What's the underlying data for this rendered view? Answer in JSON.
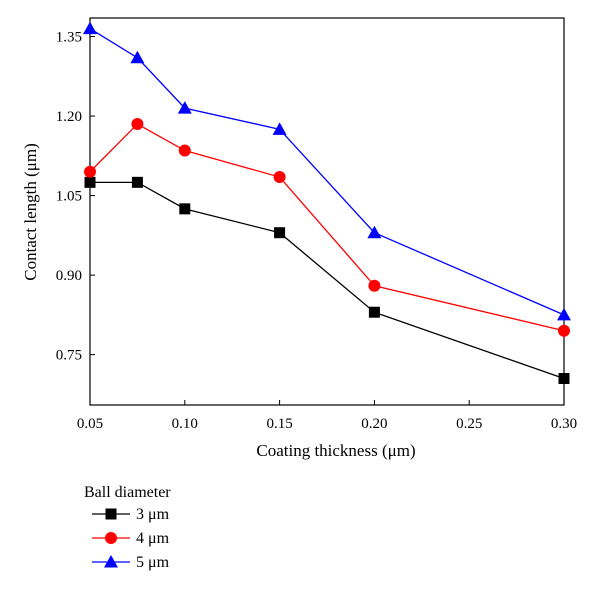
{
  "chart_data": {
    "type": "line",
    "xlabel": "Coating thickness (μm)",
    "ylabel": "Contact length (μm)",
    "xlim": [
      0.05,
      0.3
    ],
    "ylim": [
      0.655,
      1.385
    ],
    "xticks": [
      0.05,
      0.1,
      0.15,
      0.2,
      0.25,
      0.3
    ],
    "xtick_labels": [
      "0.05",
      "0.10",
      "0.15",
      "0.20",
      "0.25",
      "0.30"
    ],
    "yticks": [
      0.75,
      0.9,
      1.05,
      1.2,
      1.35
    ],
    "ytick_labels": [
      "0.75",
      "0.90",
      "1.05",
      "1.20",
      "1.35"
    ],
    "grid": false,
    "legend_title": "Ball diameter",
    "legend_position": "below",
    "x": [
      0.05,
      0.075,
      0.1,
      0.15,
      0.2,
      0.3
    ],
    "series": [
      {
        "name": "3 μm",
        "color": "#000000",
        "marker": "square",
        "values": [
          1.075,
          1.075,
          1.025,
          0.98,
          0.83,
          0.705
        ]
      },
      {
        "name": "4 μm",
        "color": "#ff0000",
        "marker": "circle",
        "values": [
          1.095,
          1.185,
          1.135,
          1.085,
          0.88,
          0.795
        ]
      },
      {
        "name": "5 μm",
        "color": "#0000ff",
        "marker": "triangle",
        "values": [
          1.365,
          1.31,
          1.215,
          1.175,
          0.98,
          0.825
        ]
      }
    ]
  }
}
